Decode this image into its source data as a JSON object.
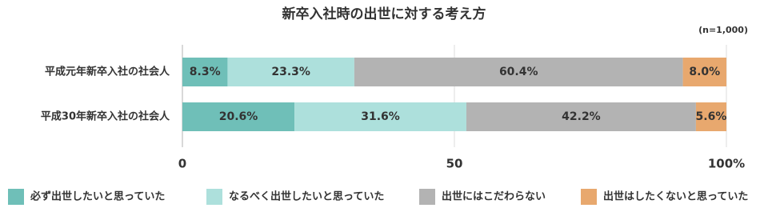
{
  "chart_data": {
    "type": "stacked-bar-horizontal",
    "title": "新卒入社時の出世に対する考え方",
    "note": "(n=1,000)",
    "categories": [
      "平成元年新卒入社の社会人",
      "平成30年新卒入社の社会人"
    ],
    "series": [
      {
        "name": "必ず出世したいと思っていた",
        "color": "#6fbfb8",
        "values": [
          8.3,
          20.6
        ],
        "value_labels": [
          "8.3%",
          "20.6%"
        ]
      },
      {
        "name": "なるべく出世したいと思っていた",
        "color": "#ade0dc",
        "values": [
          23.3,
          31.6
        ],
        "value_labels": [
          "23.3%",
          "31.6%"
        ]
      },
      {
        "name": "出世にはこだわらない",
        "color": "#b3b3b3",
        "values": [
          60.4,
          42.2
        ],
        "value_labels": [
          "60.4%",
          "42.2%"
        ]
      },
      {
        "name": "出世はしたくないと思っていた",
        "color": "#e8a86e",
        "values": [
          8.0,
          5.6
        ],
        "value_labels": [
          "8.0%",
          "5.6%"
        ]
      }
    ],
    "xlim": [
      0,
      100
    ],
    "xticks": [
      0,
      50,
      {
        "value": 100,
        "label": "100%"
      }
    ],
    "grid": true,
    "legend": "bottom"
  }
}
